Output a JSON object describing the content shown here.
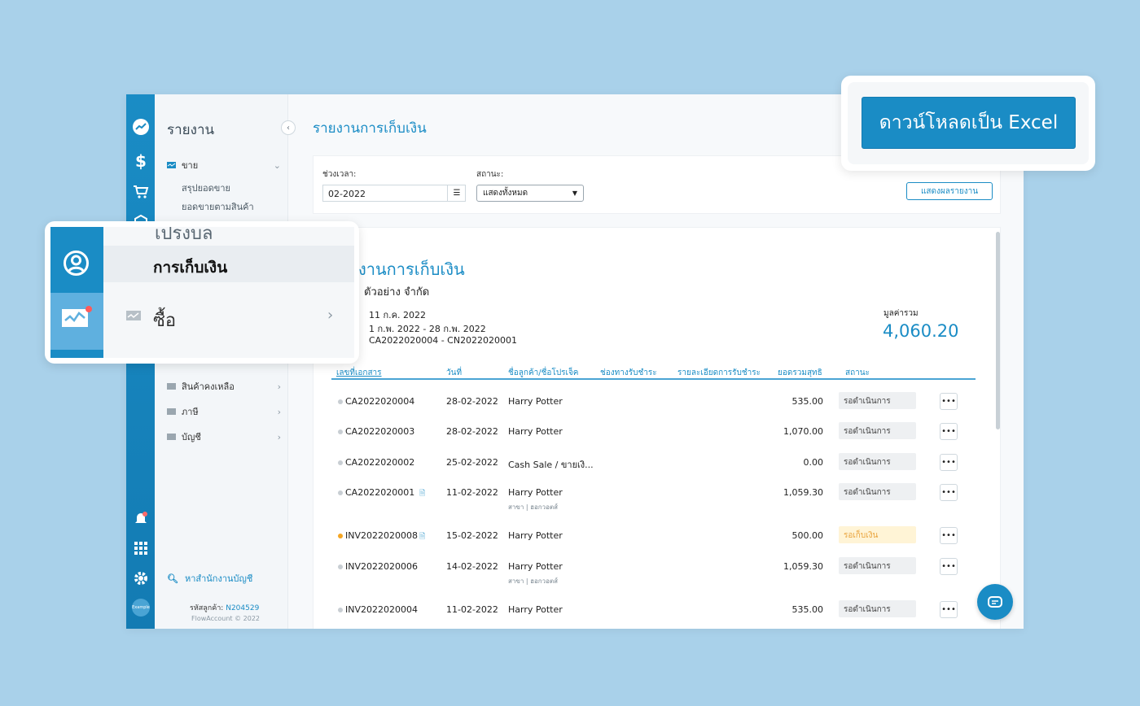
{
  "colors": {
    "accent": "#1a8cc5",
    "background": "#a9d1ea",
    "warning": "#f5a623"
  },
  "sidebar": {
    "title": "รายงาน",
    "sales_group": "ขาย",
    "sales_items": [
      "สรุปยอดขาย",
      "ยอดขายตามสินค้า"
    ],
    "groups": [
      {
        "label": "สินค้าคงเหลือ",
        "icon": "monitor-icon"
      },
      {
        "label": "ภาษี",
        "icon": "monitor-icon"
      },
      {
        "label": "บัญชี",
        "icon": "monitor-icon"
      }
    ],
    "search_accountant": "หาสำนักงานบัญชี",
    "customer_code_label": "รหัสลูกค้า:",
    "customer_code": "N204529",
    "copyright": "FlowAccount © 2022",
    "rail_icons": [
      "chart-logo-icon",
      "dollar-icon",
      "cart-icon",
      "box-icon",
      "bell-icon",
      "apps-grid-icon",
      "gear-icon",
      "avatar"
    ],
    "avatar_text": "Example"
  },
  "page": {
    "title": "รายงานการเก็บเงิน"
  },
  "filters": {
    "period_label": "ช่วงเวลา:",
    "period_value": "02-2022",
    "status_label": "สถานะ:",
    "status_value": "แสดงทั้งหมด",
    "show_report": "แสดงผลรายงาน"
  },
  "excel_button": "ดาวน์โหลดเป็น Excel",
  "report": {
    "title": "งานการเก็บเงิน",
    "company": "ตัวอย่าง จำกัด",
    "print_date": "11 ก.ค. 2022",
    "range": "1 ก.พ. 2022 - 28 ก.พ. 2022",
    "doc_range": "CA2022020004 - CN2022020001",
    "total_label": "มูลค่ารวม",
    "total_value": "4,060.20",
    "columns": [
      "เลขที่เอกสาร",
      "วันที่",
      "ชื่อลูกค้า/ชื่อโปรเจ็ค",
      "ช่องทางรับชำระ",
      "รายละเอียดการรับชำระ",
      "ยอดรวมสุทธิ",
      "สถานะ"
    ],
    "rows": [
      {
        "doc": "CA2022020004",
        "date": "28-02-2022",
        "customer": "Harry Potter",
        "sub": "",
        "amount": "535.00",
        "status": "รอดำเนินการ",
        "warn": false,
        "attach": false
      },
      {
        "doc": "CA2022020003",
        "date": "28-02-2022",
        "customer": "Harry Potter",
        "sub": "",
        "amount": "1,070.00",
        "status": "รอดำเนินการ",
        "warn": false,
        "attach": false
      },
      {
        "doc": "CA2022020002",
        "date": "25-02-2022",
        "customer": "Cash Sale / ขายเงิ...",
        "sub": "",
        "amount": "0.00",
        "status": "รอดำเนินการ",
        "warn": false,
        "attach": false
      },
      {
        "doc": "CA2022020001",
        "date": "11-02-2022",
        "customer": "Harry Potter",
        "sub": "สาขา | ฮอกวอตส์",
        "amount": "1,059.30",
        "status": "รอดำเนินการ",
        "warn": false,
        "attach": true
      },
      {
        "doc": "INV2022020008",
        "date": "15-02-2022",
        "customer": "Harry Potter",
        "sub": "",
        "amount": "500.00",
        "status": "รอเก็บเงิน",
        "warn": true,
        "attach": true
      },
      {
        "doc": "INV2022020006",
        "date": "14-02-2022",
        "customer": "Harry Potter",
        "sub": "สาขา | ฮอกวอตส์",
        "amount": "1,059.30",
        "status": "รอดำเนินการ",
        "warn": false,
        "attach": false
      },
      {
        "doc": "INV2022020004",
        "date": "11-02-2022",
        "customer": "Harry Potter",
        "sub": "",
        "amount": "535.00",
        "status": "รอดำเนินการ",
        "warn": false,
        "attach": false
      }
    ]
  },
  "overlay": {
    "cut_text": "เปรงบล",
    "active_item": "การเก็บเงิน",
    "buy_item": "ซื้อ"
  }
}
